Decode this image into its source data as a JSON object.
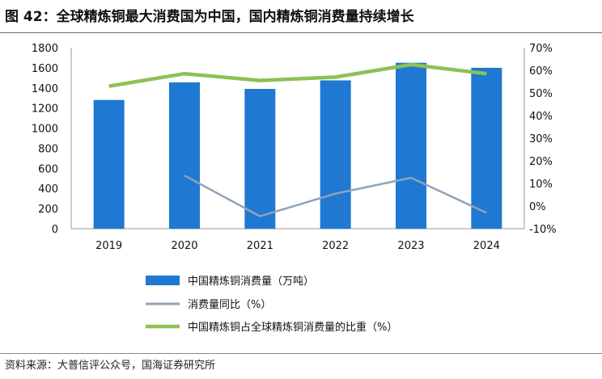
{
  "header": {
    "title": "图 42：全球精炼铜最大消费国为中国，国内精炼铜消费量持续增长"
  },
  "footer": {
    "source": "资料来源：大普信评公众号，国海证券研究所"
  },
  "colors": {
    "bar": "#1f78d1",
    "yoy_line": "#8fa3b8",
    "share_line": "#8dc152"
  },
  "chart_data": {
    "type": "bar",
    "categories": [
      "2019",
      "2020",
      "2021",
      "2022",
      "2023",
      "2024"
    ],
    "series": [
      {
        "name": "中国精炼铜消费量（万吨）",
        "type": "bar",
        "axis": "left",
        "values": [
          1280,
          1455,
          1390,
          1475,
          1650,
          1600
        ]
      },
      {
        "name": "消费量同比（%）",
        "type": "line",
        "axis": "right",
        "values": [
          null,
          13.5,
          -4.5,
          5.5,
          12.5,
          -3.0
        ]
      },
      {
        "name": "中国精炼铜占全球精炼铜消费量的比重（%）",
        "type": "line",
        "axis": "right",
        "values": [
          53.0,
          58.5,
          55.5,
          57.0,
          62.5,
          58.5
        ]
      }
    ],
    "y_left": {
      "lim": [
        0,
        1800
      ],
      "ticks": [
        "0",
        "200",
        "400",
        "600",
        "800",
        "1000",
        "1200",
        "1400",
        "1600",
        "1800"
      ]
    },
    "y_right": {
      "lim": [
        -10,
        70
      ],
      "ticks": [
        "-10%",
        "0%",
        "10%",
        "20%",
        "30%",
        "40%",
        "50%",
        "60%",
        "70%"
      ]
    },
    "grid": false,
    "legend_position": "bottom"
  }
}
